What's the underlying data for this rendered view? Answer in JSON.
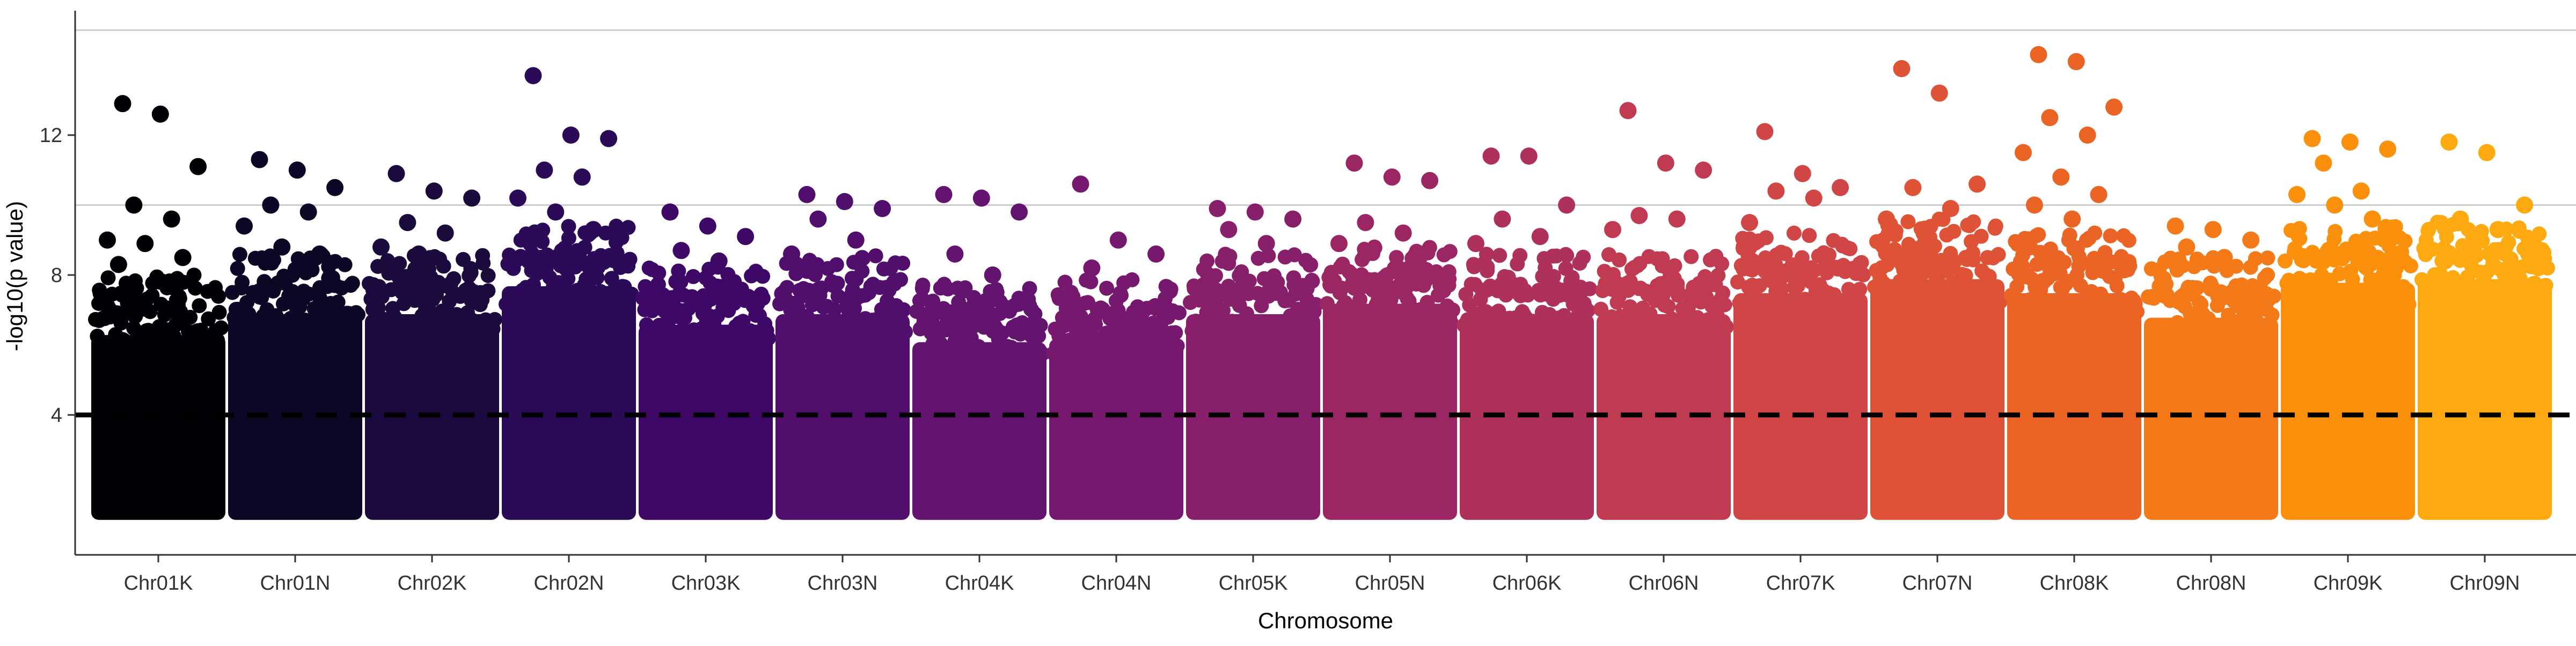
{
  "chart_data": {
    "type": "scatter",
    "subtype": "manhattan",
    "title": "",
    "xlabel": "Chromosome",
    "ylabel": "-log10(p value)",
    "ylim": [
      0,
      15.5
    ],
    "yticks": [
      4,
      8,
      12
    ],
    "grid": {
      "horizontal_lines": [
        10,
        15
      ],
      "vertical": false
    },
    "legend": "none",
    "threshold": {
      "y": 4,
      "style": "dashed",
      "color": "#000000"
    },
    "points_floor": 1,
    "categories": [
      "Chr01K",
      "Chr01N",
      "Chr02K",
      "Chr02N",
      "Chr03K",
      "Chr03N",
      "Chr04K",
      "Chr04N",
      "Chr05K",
      "Chr05N",
      "Chr06K",
      "Chr06N",
      "Chr07K",
      "Chr07N",
      "Chr08K",
      "Chr08N",
      "Chr09K",
      "Chr09N"
    ],
    "colors": [
      "#000004",
      "#0b0724",
      "#1a0b3c",
      "#2b0b57",
      "#3e0966",
      "#510e6c",
      "#63146e",
      "#76196e",
      "#881f6b",
      "#9b2664",
      "#ae305c",
      "#c03a51",
      "#d04545",
      "#de5336",
      "#ea6426",
      "#f47918",
      "#fa900b",
      "#fcaa0f"
    ],
    "series": [
      {
        "name": "Chr01K",
        "dense_max": 7.2,
        "peaks": [
          12.9,
          12.6,
          11.1,
          10.0,
          9.6,
          9.0,
          8.9,
          8.5,
          8.3
        ]
      },
      {
        "name": "Chr01N",
        "dense_max": 7.8,
        "peaks": [
          11.3,
          11.0,
          10.5,
          10.0,
          9.8,
          9.4,
          8.8,
          8.6
        ]
      },
      {
        "name": "Chr02K",
        "dense_max": 7.8,
        "peaks": [
          10.9,
          10.4,
          10.2,
          9.5,
          9.2,
          8.8,
          8.6
        ]
      },
      {
        "name": "Chr02N",
        "dense_max": 8.6,
        "peaks": [
          13.7,
          12.0,
          11.9,
          11.0,
          10.8,
          10.2,
          9.8,
          9.3
        ]
      },
      {
        "name": "Chr03K",
        "dense_max": 7.5,
        "peaks": [
          9.8,
          9.4,
          9.1,
          8.7,
          8.4
        ]
      },
      {
        "name": "Chr03N",
        "dense_max": 7.8,
        "peaks": [
          10.3,
          10.1,
          9.9,
          9.6,
          9.0,
          8.6
        ]
      },
      {
        "name": "Chr04K",
        "dense_max": 7.0,
        "peaks": [
          10.3,
          10.2,
          9.8,
          8.6,
          8.0
        ]
      },
      {
        "name": "Chr04N",
        "dense_max": 7.1,
        "peaks": [
          10.6,
          9.0,
          8.6,
          8.2
        ]
      },
      {
        "name": "Chr05K",
        "dense_max": 7.8,
        "peaks": [
          9.9,
          9.8,
          9.6,
          9.3,
          8.9
        ]
      },
      {
        "name": "Chr05N",
        "dense_max": 8.1,
        "peaks": [
          11.2,
          10.8,
          10.7,
          9.5,
          9.2,
          8.9
        ]
      },
      {
        "name": "Chr06K",
        "dense_max": 7.8,
        "peaks": [
          11.4,
          11.4,
          10.0,
          9.6,
          9.1,
          8.9
        ]
      },
      {
        "name": "Chr06N",
        "dense_max": 7.8,
        "peaks": [
          12.7,
          11.2,
          11.0,
          9.7,
          9.6,
          9.3
        ]
      },
      {
        "name": "Chr07K",
        "dense_max": 8.4,
        "peaks": [
          12.1,
          10.9,
          10.5,
          10.4,
          10.2,
          9.5
        ]
      },
      {
        "name": "Chr07N",
        "dense_max": 8.8,
        "peaks": [
          13.9,
          13.2,
          10.6,
          10.5,
          9.9,
          9.6,
          9.2
        ]
      },
      {
        "name": "Chr08K",
        "dense_max": 8.4,
        "peaks": [
          14.3,
          14.1,
          12.8,
          12.5,
          12.0,
          11.5,
          10.8,
          10.3,
          10.0,
          9.6
        ]
      },
      {
        "name": "Chr08N",
        "dense_max": 7.7,
        "peaks": [
          9.4,
          9.3,
          9.0,
          8.8,
          8.5
        ]
      },
      {
        "name": "Chr09K",
        "dense_max": 8.7,
        "peaks": [
          11.9,
          11.8,
          11.6,
          11.2,
          10.4,
          10.3,
          10.0,
          9.6
        ]
      },
      {
        "name": "Chr09N",
        "dense_max": 8.8,
        "peaks": [
          11.8,
          11.5,
          10.0,
          9.6,
          9.3
        ]
      }
    ]
  }
}
